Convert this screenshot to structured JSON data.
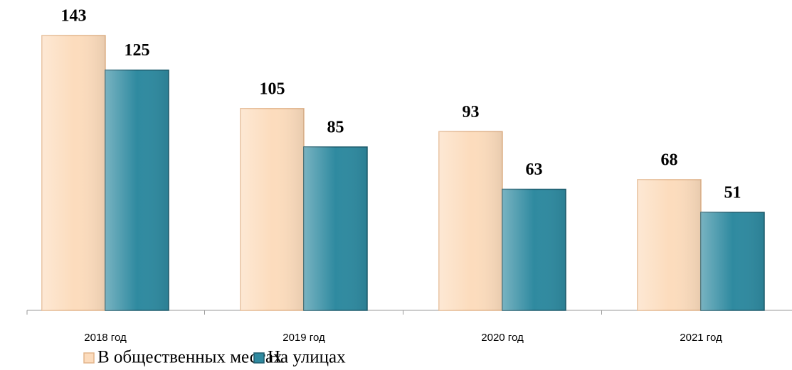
{
  "chart_data": {
    "type": "bar",
    "categories": [
      "2018 год",
      "2019 год",
      "2020 год",
      "2021 год"
    ],
    "series": [
      {
        "name": "В общественных местах",
        "color": "#fcdcbd",
        "values": [
          143,
          105,
          93,
          68
        ]
      },
      {
        "name": "На улицах",
        "color": "#2f8aa0",
        "values": [
          125,
          85,
          63,
          51
        ]
      }
    ]
  }
}
